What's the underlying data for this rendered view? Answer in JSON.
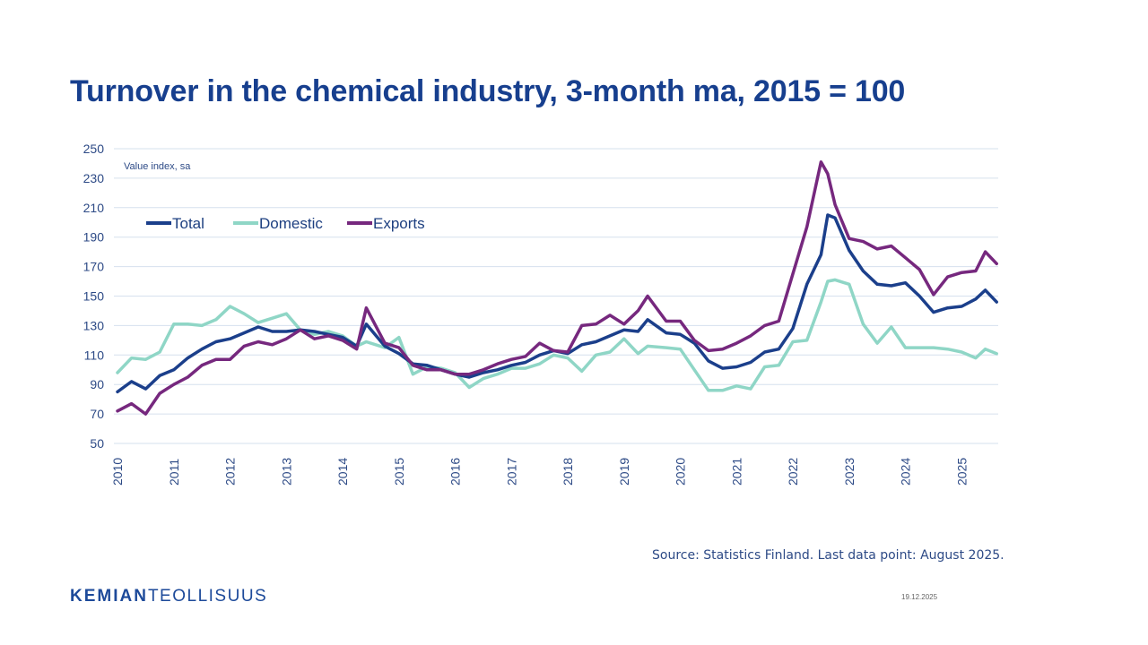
{
  "slide": {
    "title": "Turnover in the chemical industry, 3-month ma, 2015 = 100",
    "source": "Source: Statistics Finland. Last data point: August 2025.",
    "logo_bold": "KEMIAN",
    "logo_light": "TEOLLISUUS",
    "date": "19.12.2025"
  },
  "chart_data": {
    "type": "line",
    "title": "Turnover in the chemical industry, 3-month ma, 2015 = 100",
    "annotation": "Value index, sa",
    "xlabel": "",
    "ylabel": "",
    "ylim": [
      50,
      250
    ],
    "yticks": [
      50,
      70,
      90,
      110,
      130,
      150,
      170,
      190,
      210,
      230,
      250
    ],
    "xlim": [
      2010.0,
      2025.62
    ],
    "xticks": [
      "2010",
      "2011",
      "2012",
      "2013",
      "2014",
      "2015",
      "2016",
      "2017",
      "2018",
      "2019",
      "2020",
      "2021",
      "2022",
      "2023",
      "2024",
      "2025"
    ],
    "grid": true,
    "legend": {
      "position": "top-left",
      "entries": [
        "Total",
        "Domestic",
        "Exports"
      ]
    },
    "x": [
      2010.0,
      2010.25,
      2010.5,
      2010.75,
      2011.0,
      2011.25,
      2011.5,
      2011.75,
      2012.0,
      2012.25,
      2012.5,
      2012.75,
      2013.0,
      2013.25,
      2013.5,
      2013.75,
      2014.0,
      2014.25,
      2014.42,
      2014.75,
      2015.0,
      2015.25,
      2015.5,
      2015.75,
      2016.0,
      2016.25,
      2016.5,
      2016.75,
      2017.0,
      2017.25,
      2017.5,
      2017.75,
      2018.0,
      2018.25,
      2018.5,
      2018.75,
      2019.0,
      2019.25,
      2019.42,
      2019.75,
      2020.0,
      2020.25,
      2020.5,
      2020.75,
      2021.0,
      2021.25,
      2021.5,
      2021.75,
      2022.0,
      2022.25,
      2022.5,
      2022.62,
      2022.75,
      2023.0,
      2023.25,
      2023.5,
      2023.75,
      2024.0,
      2024.25,
      2024.5,
      2024.75,
      2025.0,
      2025.25,
      2025.42,
      2025.62
    ],
    "series": [
      {
        "name": "Total",
        "color": "#1b3f8b",
        "values": [
          85,
          92,
          87,
          96,
          100,
          108,
          114,
          119,
          121,
          125,
          129,
          126,
          126,
          127,
          126,
          124,
          122,
          116,
          131,
          116,
          111,
          104,
          103,
          100,
          97,
          95,
          98,
          100,
          103,
          105,
          110,
          113,
          111,
          117,
          119,
          123,
          127,
          126,
          134,
          125,
          124,
          118,
          106,
          101,
          102,
          105,
          112,
          114,
          128,
          158,
          178,
          205,
          203,
          181,
          167,
          158,
          157,
          159,
          150,
          139,
          142,
          143,
          148,
          154,
          146
        ]
      },
      {
        "name": "Domestic",
        "color": "#8fd6c6",
        "values": [
          98,
          108,
          107,
          112,
          131,
          131,
          130,
          134,
          143,
          138,
          132,
          135,
          138,
          127,
          124,
          126,
          123,
          116,
          119,
          115,
          122,
          97,
          102,
          101,
          98,
          88,
          94,
          97,
          101,
          101,
          104,
          110,
          108,
          99,
          110,
          112,
          121,
          111,
          116,
          115,
          114,
          100,
          86,
          86,
          89,
          87,
          102,
          103,
          119,
          120,
          146,
          160,
          161,
          158,
          131,
          118,
          129,
          115,
          115,
          115,
          114,
          112,
          108,
          114,
          111
        ]
      },
      {
        "name": "Exports",
        "color": "#76287e",
        "values": [
          72,
          77,
          70,
          84,
          90,
          95,
          103,
          107,
          107,
          116,
          119,
          117,
          121,
          127,
          121,
          123,
          120,
          114,
          142,
          118,
          115,
          103,
          100,
          100,
          97,
          97,
          100,
          104,
          107,
          109,
          118,
          113,
          112,
          130,
          131,
          137,
          131,
          140,
          150,
          133,
          133,
          120,
          113,
          114,
          118,
          123,
          130,
          133,
          165,
          197,
          241,
          233,
          212,
          189,
          187,
          182,
          184,
          176,
          168,
          151,
          163,
          166,
          167,
          180,
          172
        ]
      }
    ]
  }
}
